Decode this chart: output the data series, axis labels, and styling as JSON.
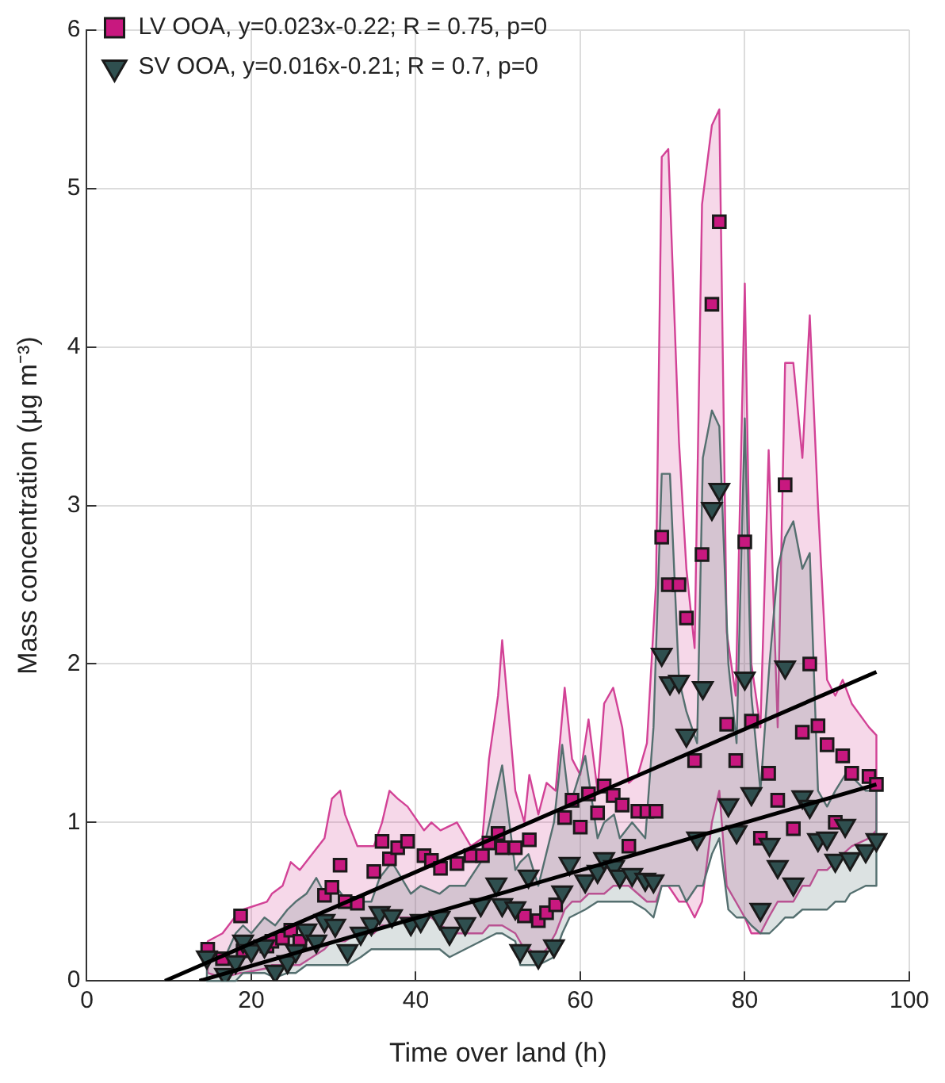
{
  "chart_data": {
    "type": "scatter",
    "xlabel": "Time over land (h)",
    "ylabel": "Mass concentration (μg m⁻³)",
    "xlim": [
      0,
      100
    ],
    "xticks": [
      0,
      20,
      40,
      60,
      80,
      100
    ],
    "ylim": [
      0,
      6
    ],
    "yticks": [
      0,
      1,
      2,
      3,
      4,
      5,
      6
    ],
    "grid": true,
    "legend": "top left",
    "series": [
      {
        "name": "LV OOA, y=0.023x-0.22; R = 0.75, p=0",
        "color": "#c8187f",
        "marker": "square",
        "x": [
          14.7,
          16.5,
          18.7,
          19.0,
          21.9,
          22.5,
          23.8,
          24.8,
          25.9,
          28.9,
          29.8,
          30.8,
          31.4,
          32.9,
          34.9,
          35.9,
          36.8,
          37.8,
          39.0,
          41.0,
          41.9,
          43.0,
          45.0,
          46.7,
          48.1,
          48.9,
          50.0,
          50.5,
          52.1,
          53.2,
          53.8,
          54.9,
          55.9,
          57.0,
          58.1,
          59.0,
          60.0,
          61.0,
          62.1,
          62.9,
          64.0,
          65.1,
          65.9,
          67.0,
          68.1,
          69.2,
          69.9,
          70.7,
          72.0,
          72.9,
          73.9,
          74.8,
          76.0,
          76.9,
          77.8,
          78.9,
          80.0,
          80.8,
          81.9,
          82.9,
          84.0,
          84.9,
          85.9,
          87.0,
          87.9,
          88.9,
          90.0,
          91.0,
          91.9,
          93.0,
          95.1,
          96.0
        ],
        "values": [
          0.2,
          0.14,
          0.41,
          0.19,
          0.22,
          0.25,
          0.27,
          0.32,
          0.25,
          0.54,
          0.59,
          0.73,
          0.5,
          0.49,
          0.69,
          0.88,
          0.77,
          0.84,
          0.88,
          0.79,
          0.76,
          0.71,
          0.74,
          0.79,
          0.79,
          0.87,
          0.93,
          0.84,
          0.84,
          0.41,
          0.89,
          0.38,
          0.43,
          0.48,
          1.03,
          1.14,
          0.97,
          1.18,
          1.06,
          1.23,
          1.17,
          1.11,
          0.85,
          1.07,
          1.07,
          1.07,
          2.8,
          2.5,
          2.5,
          2.29,
          1.39,
          2.69,
          4.27,
          4.79,
          1.62,
          1.39,
          2.77,
          1.64,
          0.9,
          1.31,
          1.14,
          3.13,
          0.96,
          1.57,
          2.0,
          1.61,
          1.49,
          1.0,
          1.42,
          1.31,
          1.29,
          1.24
        ],
        "lower": [
          0.05,
          0.02,
          0.05,
          0.05,
          0.08,
          0.1,
          0.1,
          0.1,
          0.1,
          0.2,
          0.25,
          0.25,
          0.25,
          0.3,
          0.3,
          0.35,
          0.35,
          0.4,
          0.4,
          0.4,
          0.4,
          0.35,
          0.3,
          0.3,
          0.3,
          0.35,
          0.35,
          0.35,
          0.3,
          0.2,
          0.2,
          0.15,
          0.2,
          0.3,
          0.45,
          0.5,
          0.5,
          0.55,
          0.55,
          0.55,
          0.6,
          0.6,
          0.6,
          0.55,
          0.5,
          0.5,
          0.6,
          0.6,
          0.5,
          0.5,
          0.4,
          0.5,
          1.0,
          1.2,
          0.6,
          0.5,
          0.4,
          0.3,
          0.3,
          0.4,
          0.5,
          0.5,
          0.5,
          0.6,
          0.6,
          0.7,
          0.7,
          0.75,
          0.8,
          0.85,
          0.9,
          0.95
        ],
        "upper": [
          0.25,
          0.3,
          0.45,
          0.45,
          0.5,
          0.55,
          0.6,
          0.75,
          0.7,
          0.9,
          1.15,
          1.2,
          1.05,
          0.85,
          0.85,
          1.0,
          1.2,
          1.15,
          1.1,
          0.95,
          1.0,
          0.95,
          1.0,
          0.85,
          0.9,
          1.4,
          1.8,
          2.15,
          1.2,
          1.0,
          1.3,
          1.05,
          1.25,
          1.2,
          1.85,
          1.4,
          1.3,
          1.65,
          1.2,
          1.75,
          1.85,
          1.6,
          1.25,
          1.3,
          1.5,
          2.5,
          5.2,
          5.25,
          3.4,
          2.6,
          2.1,
          4.9,
          5.4,
          5.5,
          2.2,
          1.8,
          4.4,
          2.0,
          1.6,
          3.35,
          1.6,
          3.9,
          3.9,
          3.3,
          4.2,
          3.0,
          1.9,
          1.8,
          1.9,
          1.75,
          1.6,
          1.55
        ]
      },
      {
        "name": "SV OOA, y=0.016x-0.21; R = 0.7, p=0",
        "color": "#2f4f4f",
        "marker": "triangle",
        "x": [
          14.6,
          16.8,
          18.1,
          19.0,
          20.0,
          21.6,
          22.9,
          24.4,
          25.4,
          26.7,
          27.9,
          28.9,
          30.2,
          31.7,
          33.3,
          34.6,
          35.6,
          37.1,
          39.4,
          40.6,
          42.9,
          44.1,
          46.0,
          47.9,
          49.8,
          50.5,
          52.1,
          52.7,
          53.7,
          54.9,
          56.8,
          57.8,
          58.7,
          60.6,
          62.1,
          62.9,
          64.1,
          64.8,
          66.3,
          67.9,
          68.9,
          69.9,
          70.9,
          72.0,
          72.9,
          74.2,
          74.9,
          76.0,
          76.9,
          78.0,
          79.0,
          80.0,
          80.8,
          81.9,
          83.0,
          84.0,
          84.9,
          85.9,
          87.0,
          87.9,
          88.9,
          90.0,
          91.0,
          92.2,
          92.8,
          94.7,
          96.0
        ],
        "values": [
          0.15,
          0.04,
          0.12,
          0.25,
          0.19,
          0.22,
          0.06,
          0.12,
          0.19,
          0.32,
          0.25,
          0.38,
          0.35,
          0.19,
          0.3,
          0.36,
          0.43,
          0.41,
          0.36,
          0.38,
          0.4,
          0.3,
          0.36,
          0.48,
          0.61,
          0.48,
          0.46,
          0.19,
          0.66,
          0.15,
          0.22,
          0.56,
          0.74,
          0.63,
          0.69,
          0.77,
          0.72,
          0.66,
          0.67,
          0.64,
          0.63,
          2.06,
          1.88,
          1.89,
          1.55,
          0.9,
          1.85,
          2.98,
          3.1,
          1.11,
          0.94,
          1.91,
          1.18,
          0.45,
          0.86,
          0.72,
          1.98,
          0.61,
          1.16,
          1.1,
          0.89,
          0.9,
          0.76,
          0.98,
          0.77,
          0.82,
          0.89
        ],
        "lower": [
          0.0,
          0.0,
          0.0,
          0.05,
          0.05,
          0.05,
          0.02,
          0.05,
          0.05,
          0.1,
          0.1,
          0.1,
          0.1,
          0.1,
          0.15,
          0.2,
          0.2,
          0.2,
          0.2,
          0.2,
          0.2,
          0.15,
          0.2,
          0.25,
          0.3,
          0.3,
          0.25,
          0.1,
          0.1,
          0.1,
          0.15,
          0.3,
          0.4,
          0.45,
          0.5,
          0.5,
          0.5,
          0.5,
          0.5,
          0.45,
          0.4,
          0.6,
          0.6,
          0.6,
          0.5,
          0.6,
          0.6,
          0.8,
          0.9,
          0.45,
          0.4,
          0.4,
          0.35,
          0.3,
          0.3,
          0.35,
          0.4,
          0.4,
          0.45,
          0.45,
          0.45,
          0.45,
          0.5,
          0.5,
          0.55,
          0.6,
          0.6
        ],
        "upper": [
          0.2,
          0.15,
          0.3,
          0.35,
          0.3,
          0.4,
          0.35,
          0.45,
          0.5,
          0.55,
          0.65,
          0.55,
          0.6,
          0.5,
          0.5,
          0.5,
          0.65,
          0.75,
          0.55,
          0.6,
          0.55,
          0.6,
          0.6,
          0.75,
          1.2,
          1.36,
          0.7,
          0.75,
          0.8,
          0.6,
          1.0,
          1.49,
          1.1,
          1.42,
          0.9,
          1.0,
          1.05,
          0.9,
          1.0,
          0.9,
          1.6,
          3.2,
          3.2,
          1.9,
          1.7,
          1.5,
          3.3,
          3.6,
          3.5,
          2.0,
          1.5,
          3.55,
          1.8,
          1.2,
          2.0,
          2.6,
          2.8,
          2.9,
          2.6,
          2.7,
          1.2,
          1.1,
          1.2,
          1.3,
          1.3,
          1.2,
          1.2
        ]
      },
      {
        "type": "line",
        "color": "#000000",
        "x": [
          9.5,
          96
        ],
        "values": [
          0,
          1.95
        ]
      },
      {
        "type": "line",
        "color": "#000000",
        "x": [
          13.7,
          96
        ],
        "values": [
          0,
          1.24
        ]
      }
    ]
  }
}
